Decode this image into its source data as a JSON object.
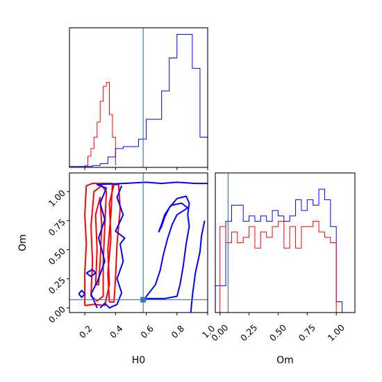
{
  "chart_data": [
    {
      "type": "histogram",
      "panel": "H0 marginal",
      "xlim": [
        0.1,
        1.0
      ],
      "xticks": [
        "0.2",
        "0.4",
        "0.6",
        "0.8",
        "1.0"
      ],
      "truth": 0.58,
      "series": [
        {
          "color": "#ff0000",
          "bins": [
            0.2,
            0.22,
            0.24,
            0.26,
            0.28,
            0.3,
            0.32,
            0.34,
            0.36,
            0.38,
            0.4
          ],
          "counts": [
            2,
            12,
            20,
            32,
            48,
            70,
            86,
            90,
            56,
            32,
            2
          ]
        },
        {
          "color": "#0000ff",
          "bins": [
            0.1,
            0.15,
            0.2,
            0.25,
            0.3,
            0.35,
            0.4,
            0.45,
            0.5,
            0.55,
            0.6,
            0.65,
            0.7,
            0.75,
            0.8,
            0.85,
            0.9,
            0.95,
            1.0
          ],
          "counts": [
            1,
            1,
            1,
            2,
            4,
            11,
            20,
            22,
            22,
            30,
            51,
            51,
            81,
            116,
            141,
            141,
            105,
            32,
            16
          ]
        }
      ]
    },
    {
      "type": "contour",
      "panel": "H0 vs Om",
      "xlabel": "H0",
      "ylabel": "Om",
      "xlim": [
        0.1,
        1.0
      ],
      "ylim": [
        -0.04,
        1.16
      ],
      "xticks": [
        "0.2",
        "0.4",
        "0.6",
        "0.8",
        "1.0"
      ],
      "yticks": [
        "0.00",
        "0.25",
        "0.50",
        "0.75",
        "1.00"
      ],
      "truth": {
        "H0": 0.58,
        "Om": 0.07
      },
      "series": [
        {
          "color": "#ff0000",
          "contours": [
            [
              [
                0.2,
                0.02
              ],
              [
                0.2,
                0.3
              ],
              [
                0.21,
                0.55
              ],
              [
                0.2,
                0.8
              ],
              [
                0.21,
                1.05
              ],
              [
                0.25,
                1.07
              ],
              [
                0.33,
                1.07
              ],
              [
                0.38,
                1.07
              ],
              [
                0.37,
                0.8
              ],
              [
                0.35,
                0.5
              ],
              [
                0.36,
                0.2
              ],
              [
                0.33,
                0.02
              ],
              [
                0.26,
                0.03
              ],
              [
                0.2,
                0.02
              ]
            ],
            [
              [
                0.24,
                0.1
              ],
              [
                0.25,
                0.4
              ],
              [
                0.24,
                0.7
              ],
              [
                0.26,
                1.0
              ],
              [
                0.31,
                1.05
              ],
              [
                0.34,
                1.0
              ],
              [
                0.33,
                0.7
              ],
              [
                0.32,
                0.4
              ],
              [
                0.32,
                0.1
              ],
              [
                0.28,
                0.06
              ],
              [
                0.24,
                0.1
              ]
            ],
            [
              [
                0.27,
                0.2
              ],
              [
                0.28,
                0.5
              ],
              [
                0.27,
                0.8
              ],
              [
                0.3,
                0.95
              ],
              [
                0.31,
                0.7
              ],
              [
                0.3,
                0.4
              ],
              [
                0.29,
                0.2
              ],
              [
                0.27,
                0.2
              ]
            ],
            [
              [
                0.36,
                0.05
              ],
              [
                0.35,
                0.3
              ],
              [
                0.37,
                0.6
              ],
              [
                0.36,
                0.9
              ],
              [
                0.39,
                1.06
              ],
              [
                0.42,
                1.06
              ],
              [
                0.43,
                0.85
              ],
              [
                0.41,
                0.55
              ],
              [
                0.4,
                0.25
              ],
              [
                0.39,
                0.05
              ],
              [
                0.36,
                0.05
              ]
            ]
          ]
        },
        {
          "color": "#0000ff",
          "contours": [
            [
              [
                0.28,
                0.0
              ],
              [
                0.24,
                0.12
              ],
              [
                0.28,
                0.22
              ],
              [
                0.33,
                0.4
              ],
              [
                0.29,
                0.6
              ],
              [
                0.33,
                0.76
              ],
              [
                0.3,
                0.9
              ],
              [
                0.34,
                1.03
              ],
              [
                0.28,
                1.06
              ],
              [
                0.45,
                1.07
              ],
              [
                0.6,
                1.08
              ],
              [
                0.7,
                1.07
              ],
              [
                0.8,
                1.08
              ],
              [
                0.92,
                1.07
              ],
              [
                1.0,
                1.07
              ]
            ],
            [
              [
                0.3,
                0.0
              ],
              [
                0.33,
                0.04
              ],
              [
                0.36,
                0.0
              ],
              [
                0.41,
                0.03
              ],
              [
                0.44,
                0.13
              ],
              [
                0.41,
                0.25
              ],
              [
                0.45,
                0.4
              ],
              [
                0.43,
                0.55
              ],
              [
                0.46,
                0.6
              ],
              [
                0.4,
                0.66
              ],
              [
                0.45,
                0.8
              ],
              [
                0.41,
                0.95
              ],
              [
                0.44,
                1.05
              ]
            ],
            [
              [
                0.16,
                0.12
              ],
              [
                0.18,
                0.15
              ],
              [
                0.2,
                0.12
              ],
              [
                0.18,
                0.09
              ],
              [
                0.16,
                0.12
              ]
            ],
            [
              [
                0.21,
                0.3
              ],
              [
                0.25,
                0.33
              ],
              [
                0.27,
                0.3
              ],
              [
                0.24,
                0.27
              ],
              [
                0.21,
                0.3
              ]
            ],
            [
              [
                0.68,
                0.65
              ],
              [
                0.7,
                0.72
              ],
              [
                0.72,
                0.8
              ],
              [
                0.76,
                0.88
              ],
              [
                0.83,
                0.9
              ],
              [
                0.87,
                0.86
              ],
              [
                0.8,
                0.8
              ],
              [
                0.77,
                0.72
              ],
              [
                0.74,
                0.6
              ],
              [
                0.71,
                0.45
              ],
              [
                0.69,
                0.32
              ],
              [
                0.66,
                0.2
              ],
              [
                0.59,
                0.08
              ],
              [
                0.72,
                0.08
              ],
              [
                0.8,
                0.1
              ],
              [
                0.82,
                0.2
              ],
              [
                0.84,
                0.35
              ],
              [
                0.86,
                0.55
              ],
              [
                0.88,
                0.7
              ],
              [
                0.87,
                0.8
              ],
              [
                0.88,
                0.9
              ],
              [
                0.86,
                0.96
              ],
              [
                0.8,
                0.94
              ],
              [
                0.75,
                0.86
              ],
              [
                0.72,
                0.78
              ],
              [
                0.7,
                0.7
              ],
              [
                0.68,
                0.65
              ]
            ],
            [
              [
                0.89,
                -0.04
              ],
              [
                0.9,
                0.1
              ],
              [
                0.92,
                0.3
              ],
              [
                0.95,
                0.48
              ],
              [
                0.96,
                0.62
              ],
              [
                0.98,
                0.75
              ]
            ]
          ]
        }
      ]
    },
    {
      "type": "histogram",
      "panel": "Om marginal",
      "xlabel": "Om",
      "xlim": [
        -0.04,
        1.16
      ],
      "xticks": [
        "0.00",
        "0.25",
        "0.50",
        "0.75",
        "1.00"
      ],
      "truth": 0.07,
      "series": [
        {
          "color": "#0000ff",
          "bins": [
            -0.04,
            0.0,
            0.05,
            0.1,
            0.15,
            0.2,
            0.25,
            0.3,
            0.35,
            0.4,
            0.45,
            0.5,
            0.55,
            0.6,
            0.65,
            0.7,
            0.75,
            0.8,
            0.85,
            0.9,
            0.95,
            1.0,
            1.05
          ],
          "counts": [
            5,
            5,
            17,
            20,
            20,
            17,
            18,
            17,
            18,
            17,
            19,
            18,
            17,
            18,
            21,
            19,
            21,
            20,
            23,
            21,
            16,
            2
          ]
        },
        {
          "color": "#ff0000",
          "bins": [
            0.0,
            0.05,
            0.1,
            0.15,
            0.2,
            0.25,
            0.3,
            0.35,
            0.4,
            0.45,
            0.5,
            0.55,
            0.6,
            0.65,
            0.7,
            0.75,
            0.8,
            0.85,
            0.9,
            0.95,
            1.0
          ],
          "counts": [
            16,
            13,
            15,
            13,
            14,
            16,
            12,
            15,
            14,
            16,
            17,
            12,
            16,
            12,
            16,
            16,
            17,
            15,
            14,
            13
          ]
        }
      ]
    }
  ]
}
